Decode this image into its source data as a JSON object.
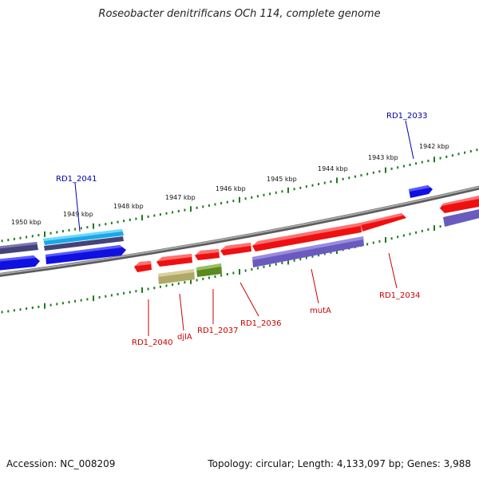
{
  "title": "Roseobacter denitrificans OCh 114, complete genome",
  "footer": {
    "accession": "Accession: NC_008209",
    "summary": "Topology: circular; Length: 4,133,097 bp; Genes: 3,988"
  },
  "scale": {
    "unit": "kbp",
    "ticks": [
      "1950 kbp",
      "1949 kbp",
      "1948 kbp",
      "1947 kbp",
      "1946 kbp",
      "1945 kbp",
      "1944 kbp",
      "1943 kbp",
      "1942 kbp"
    ]
  },
  "colors": {
    "backbone": "#8a8a8a",
    "tick": "#1f7a1f",
    "gene_forward": "#ff2020",
    "gene_reverse_blue": "#1a1aee",
    "gene_cyan": "#1ab8f0",
    "gene_navy": "#4a4a8a",
    "gene_purple": "#7060c8",
    "gene_khaki": "#b8b070",
    "gene_olive": "#6a9a2a",
    "label_red": "#cc0000",
    "label_blue": "#0000aa"
  },
  "gene_labels": [
    {
      "id": "RD1_2041",
      "color": "blue"
    },
    {
      "id": "RD1_2033",
      "color": "blue"
    },
    {
      "id": "RD1_2040",
      "color": "red"
    },
    {
      "id": "djlA",
      "color": "red"
    },
    {
      "id": "RD1_2037",
      "color": "red"
    },
    {
      "id": "RD1_2036",
      "color": "red"
    },
    {
      "id": "mutA",
      "color": "red"
    },
    {
      "id": "RD1_2034",
      "color": "red"
    }
  ]
}
